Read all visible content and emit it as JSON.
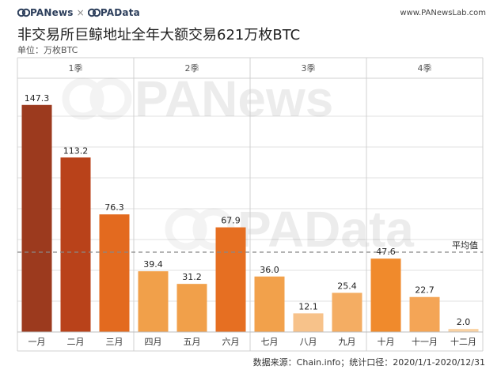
{
  "header": {
    "brand_left": "PANews",
    "brand_sep": "×",
    "brand_right": "PAData",
    "site": "www.PANewsLab.com"
  },
  "title": "非交易所巨鲸地址全年大额交易621万枚BTC",
  "unit": "单位：万枚BTC",
  "source": "数据来源：Chain.info；统计口径：2020/1/1-2020/12/31",
  "watermarks": [
    "PANews",
    "PAData"
  ],
  "colors": {
    "q1": [
      "#9c3a1e",
      "#b9421a",
      "#e36a1f"
    ],
    "q2": [
      "#f1a04a",
      "#f1a04a",
      "#e66f22"
    ],
    "q3": [
      "#f2a14b",
      "#f7c28a",
      "#f4ad63"
    ],
    "q4": [
      "#f08a2c",
      "#f4a556",
      "#f9d2a4"
    ],
    "grid": "#e2e2e2",
    "avg_line": "#888888"
  },
  "chart_data": {
    "type": "bar",
    "title": "非交易所巨鲸地址全年大额交易621万枚BTC",
    "ylabel": "单位：万枚BTC",
    "ylim": [
      0,
      160
    ],
    "grid": true,
    "quarters": [
      "1季",
      "2季",
      "3季",
      "4季"
    ],
    "categories": [
      "一月",
      "二月",
      "三月",
      "四月",
      "五月",
      "六月",
      "七月",
      "八月",
      "九月",
      "十月",
      "十一月",
      "十二月"
    ],
    "values": [
      147.3,
      113.2,
      76.3,
      39.4,
      31.2,
      67.9,
      36.0,
      12.1,
      25.4,
      47.6,
      22.7,
      2.0
    ],
    "value_labels": [
      "147.3",
      "113.2",
      "76.3",
      "39.4",
      "31.2",
      "67.9",
      "36.0",
      "12.1",
      "25.4",
      "47.6",
      "22.7",
      "2.0"
    ],
    "average": {
      "label": "平均值",
      "value": 51.8
    }
  }
}
